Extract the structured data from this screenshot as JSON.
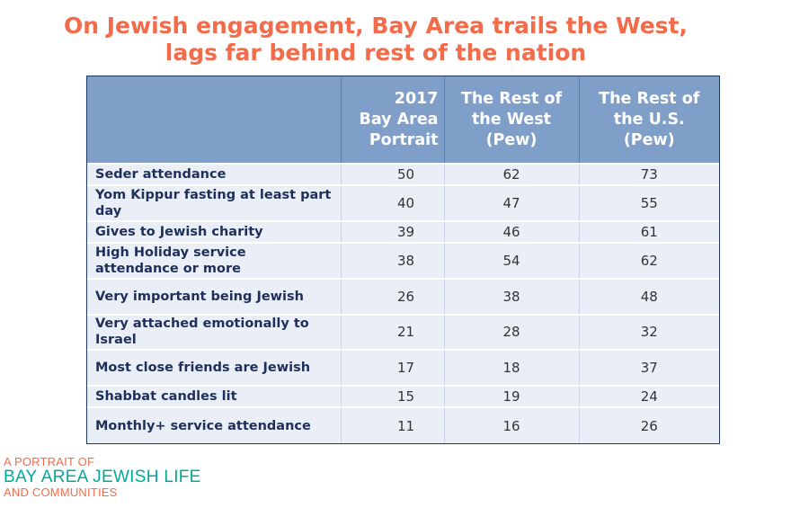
{
  "title_lines": [
    "On Jewish engagement, Bay Area trails the West,",
    "lags far behind rest of the nation"
  ],
  "chart_data": {
    "type": "table",
    "columns": [
      "",
      "2017 Bay Area Portrait",
      "The Rest of the West (Pew)",
      "The Rest of the U.S. (Pew)"
    ],
    "header_lines": [
      [
        "2017",
        "Bay Area",
        "Portrait"
      ],
      [
        "The Rest of",
        "the West",
        "(Pew)"
      ],
      [
        "The Rest of",
        "the U.S.",
        "(Pew)"
      ]
    ],
    "rows": [
      {
        "label": "Seder attendance",
        "values": [
          50,
          62,
          73
        ]
      },
      {
        "label": "Yom Kippur fasting at least part day",
        "values": [
          40,
          47,
          55
        ]
      },
      {
        "label": "Gives to Jewish charity",
        "values": [
          39,
          46,
          61
        ]
      },
      {
        "label": "High Holiday service attendance or more",
        "values": [
          38,
          54,
          62
        ]
      },
      {
        "label": "Very important being Jewish",
        "values": [
          26,
          38,
          48
        ]
      },
      {
        "label": "Very attached emotionally to Israel",
        "values": [
          21,
          28,
          32
        ]
      },
      {
        "label": "Most close friends are Jewish",
        "values": [
          17,
          18,
          37
        ]
      },
      {
        "label": "Shabbat candles lit",
        "values": [
          15,
          19,
          24
        ]
      },
      {
        "label": "Monthly+ service attendance",
        "values": [
          11,
          16,
          26
        ]
      }
    ]
  },
  "logo": {
    "line1": "A PORTRAIT OF",
    "line2": "BAY AREA JEWISH LIFE",
    "line3": "AND COMMUNITIES"
  },
  "colors": {
    "title": "#f26b4a",
    "header_bg": "#7f9ec8",
    "row_bg": "#eaeff7",
    "label_text": "#1f2f5c",
    "logo_teal": "#00a99d",
    "logo_orange": "#f26b4a"
  }
}
